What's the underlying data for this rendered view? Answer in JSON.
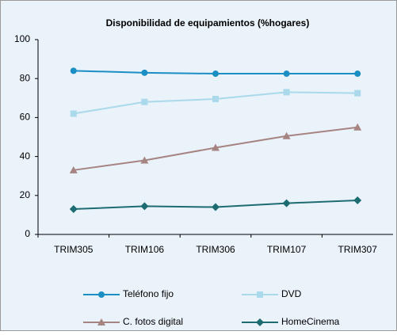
{
  "chart_data": {
    "type": "line",
    "title": "Disponibilidad de equipamientos (%hogares)",
    "categories": [
      "TRIM305",
      "TRIM106",
      "TRIM306",
      "TRIM107",
      "TRIM307"
    ],
    "series": [
      {
        "name": "Teléfono fijo",
        "color": "#1b8fc4",
        "marker": "circle",
        "values": [
          84,
          83,
          82.5,
          82.5,
          82.5
        ]
      },
      {
        "name": "DVD",
        "color": "#a9d9ea",
        "marker": "square",
        "values": [
          62,
          68,
          69.5,
          73,
          72.5
        ]
      },
      {
        "name": "C. fotos digital",
        "color": "#a68482",
        "marker": "triangle",
        "values": [
          33,
          38,
          44.5,
          50.5,
          55
        ]
      },
      {
        "name": "HomeCinema",
        "color": "#1c6c72",
        "marker": "diamond",
        "values": [
          13,
          14.5,
          14,
          16,
          17.5
        ]
      }
    ],
    "ylim": [
      0,
      100
    ],
    "yticks": [
      0,
      20,
      40,
      60,
      80,
      100
    ],
    "grid": false,
    "legend": "bottom"
  }
}
